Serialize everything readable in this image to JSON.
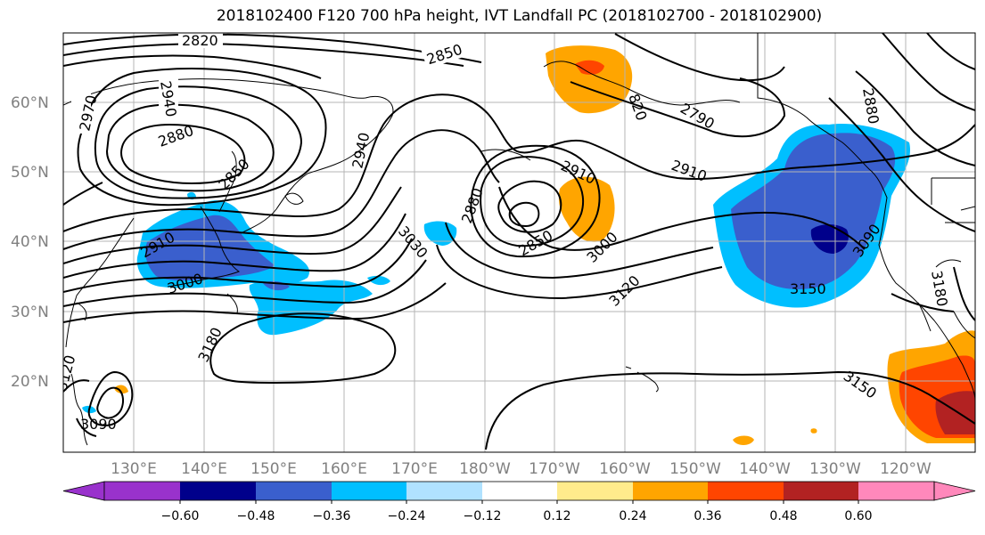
{
  "title": "2018102400 F120 700 hPa height, IVT Landfall PC (2018102700 - 2018102900)",
  "lat_labels": [
    "60°N",
    "50°N",
    "40°N",
    "30°N",
    "20°N"
  ],
  "lon_labels": [
    "130°E",
    "140°E",
    "150°E",
    "160°E",
    "170°E",
    "180°W",
    "170°W",
    "160°W",
    "150°W",
    "140°W",
    "130°W",
    "120°W"
  ],
  "contour_labels": {
    "c2820": "2820",
    "c2850a": "2850",
    "c2850b": "2850",
    "c2850c": "2850",
    "c2880a": "2880",
    "c2880b": "2880",
    "c2880c": "2880",
    "c2910a": "2910",
    "c2910b": "2910",
    "c2910c": "2910",
    "c2940a": "2940",
    "c2940b": "2940",
    "c2970": "2970",
    "c2790": "2790",
    "c2820b": "820",
    "c3000a": "3000",
    "c3000b": "3000",
    "c3030": "3030",
    "c3090a": "3090",
    "c3090b": "3090",
    "c3120a": "3120",
    "c3120b": "3120",
    "c3150a": "3150",
    "c3150b": "3150",
    "c3180a": "3180",
    "c3180b": "3180"
  },
  "colorbar": {
    "ticks": [
      "−0.60",
      "−0.48",
      "−0.36",
      "−0.24",
      "−0.12",
      "0.12",
      "0.24",
      "0.36",
      "0.48",
      "0.60"
    ],
    "colors": [
      "#9932cc",
      "#00008b",
      "#3a5fcd",
      "#00bfff",
      "#b0e2ff",
      "#ffffff",
      "#ffeb8c",
      "#ffa500",
      "#ff4500",
      "#b22222",
      "#ff88bb"
    ]
  }
}
